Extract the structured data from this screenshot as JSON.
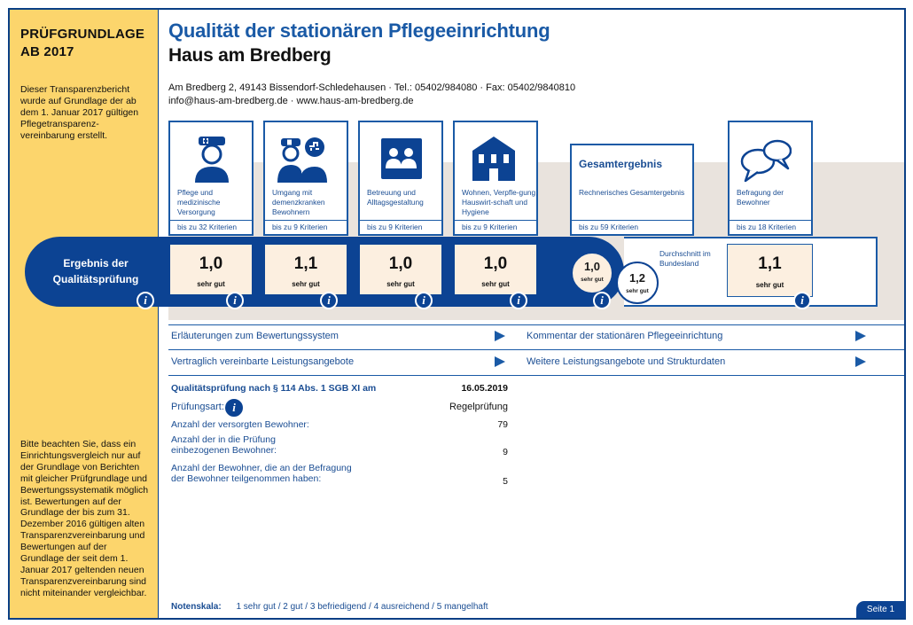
{
  "sidebar": {
    "title_line1": "PRÜFGRUNDLAGE",
    "title_line2": "AB 2017",
    "intro": "Dieser Transparenzbericht wurde auf Grundlage der ab dem 1. Januar 2017 gültigen Pflegetransparenz-vereinbarung erstellt.",
    "note": "Bitte beachten Sie, dass ein Einrichtungsvergleich nur auf der Grundlage von Berichten mit gleicher Prüfgrundlage und Bewertungssystematik möglich ist. Bewertungen auf der Grundlage der bis zum 31. Dezember 2016 gültigen alten Transparenzvereinbarung und Bewertungen auf der Grundlage der seit dem 1. Januar 2017 geltenden neuen Transparenzvereinbarung sind nicht miteinander vergleichbar."
  },
  "header": {
    "title": "Qualität der stationären Pflegeeinrichtung",
    "facility": "Haus am Bredberg",
    "address": "Am Bredberg 2, 49143 Bissendorf-Schledehausen · Tel.: 05402/984080 · Fax: 05402/9840810",
    "contact": "info@haus-am-bredberg.de · www.haus-am-bredberg.de"
  },
  "categories": [
    {
      "label": "Pflege und medizinische Versorgung",
      "criteria": "bis zu 32 Kriterien",
      "score": "1,0",
      "grade": "sehr gut",
      "icon": "nurse-icon"
    },
    {
      "label": "Umgang mit demenzkranken Bewohnern",
      "criteria": "bis zu 9 Kriterien",
      "score": "1,1",
      "grade": "sehr gut",
      "icon": "dementia-care-icon"
    },
    {
      "label": "Betreuung und Alltagsgestaltung",
      "criteria": "bis zu 9 Kriterien",
      "score": "1,0",
      "grade": "sehr gut",
      "icon": "people-icon"
    },
    {
      "label": "Wohnen, Verpfle-gung, Hauswirt-schaft und Hygiene",
      "criteria": "bis zu 9 Kriterien",
      "score": "1,0",
      "grade": "sehr gut",
      "icon": "house-icon"
    }
  ],
  "total": {
    "title": "Gesamtergebnis",
    "label": "Rechnerisches Gesamtergebnis",
    "criteria": "bis zu 59 Kriterien",
    "score": "1,0",
    "grade": "sehr gut",
    "average_label": "Durchschnitt im Bundesland",
    "average_score": "1,2",
    "average_grade": "sehr gut"
  },
  "survey": {
    "label": "Befragung der Bewohner",
    "criteria": "bis zu 18 Kriterien",
    "score": "1,1",
    "grade": "sehr gut",
    "icon": "speech-bubbles-icon"
  },
  "result_label_line1": "Ergebnis der",
  "result_label_line2": "Qualitätsprüfung",
  "info_glyph": "i",
  "links": [
    "Erläuterungen zum Bewertungssystem",
    "Kommentar der stationären Pflegeeinrichtung",
    "Vertraglich vereinbarte Leistungsangebote",
    "Weitere Leistungsangebote und Strukturdaten"
  ],
  "facts": {
    "exam_label": "Qualitätsprüfung nach § 114 Abs. 1 SGB XI am",
    "exam_date": "16.05.2019",
    "type_label": "Prüfungsart:",
    "type_value": "Regelprüfung",
    "residents_label": "Anzahl der versorgten Bewohner:",
    "residents_value": "79",
    "included_label_1": "Anzahl der in die Prüfung",
    "included_label_2": "einbezogenen Bewohner:",
    "included_value": "9",
    "survey_label_1": "Anzahl der Bewohner, die an der Befragung",
    "survey_label_2": "der Bewohner teilgenommen haben:",
    "survey_value": "5"
  },
  "notes": {
    "label": "Notenskala:",
    "scale": "1 sehr gut / 2 gut / 3 befriedigend / 4 ausreichend / 5 mangelhaft"
  },
  "page_label": "Seite 1",
  "colors": {
    "brand_blue": "#0c4393",
    "sidebar_yellow": "#fcd56c",
    "score_fill": "#fcefe0",
    "band_grey": "#e9e3dd"
  }
}
